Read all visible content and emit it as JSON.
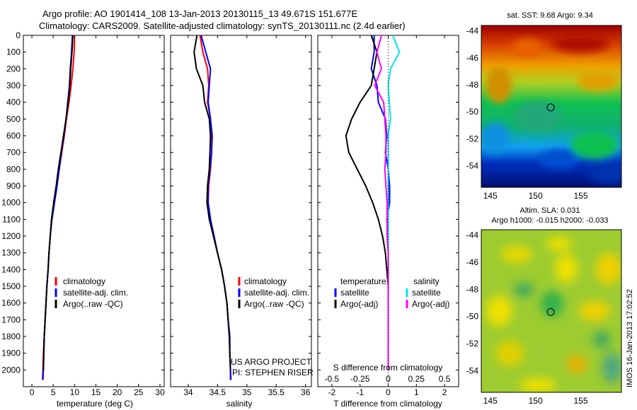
{
  "header": {
    "line1": "Argo profile: AO 1901414_108 13-Jan-2013 20130115_13 49.671S 151.677E",
    "line2": "Climatology: CARS2009. Satellite-adjusted climatology: synTS_20130111.nc (2.4d earlier)"
  },
  "colors": {
    "climatology": "#ff0000",
    "satellite": "#0000ff",
    "argo": "#000000",
    "sal_satellite": "#00e5e5",
    "sal_argo": "#ff00ff"
  },
  "depth_axis": {
    "ylim": [
      2100,
      0
    ],
    "ticks": [
      0,
      100,
      200,
      300,
      400,
      500,
      600,
      700,
      800,
      900,
      1000,
      1100,
      1200,
      1300,
      1400,
      1500,
      1600,
      1700,
      1800,
      1900,
      2000
    ]
  },
  "chart_data": [
    {
      "type": "line",
      "xlabel": "temperature (deg C)",
      "ylabel": "",
      "xlim": [
        -2,
        31
      ],
      "xticks": [
        0,
        5,
        10,
        15,
        20,
        25,
        30
      ],
      "legend": [
        "climatology",
        "satellite-adj. clim.",
        "Argo(..raw -QC)"
      ],
      "legend_position": "lower-center",
      "series": [
        {
          "name": "climatology",
          "color": "#ff0000",
          "x": [
            10.0,
            9.9,
            9.6,
            9.2,
            8.7,
            8.1,
            7.6,
            7.0,
            6.4,
            5.8,
            5.2,
            4.6,
            4.3,
            4.0,
            3.8,
            3.5,
            3.3,
            3.1,
            2.9,
            2.7,
            2.6,
            2.5
          ],
          "y": [
            0,
            100,
            200,
            300,
            400,
            500,
            600,
            700,
            800,
            900,
            1000,
            1100,
            1200,
            1300,
            1400,
            1500,
            1600,
            1700,
            1800,
            1900,
            2000,
            2060
          ]
        },
        {
          "name": "satellite-adj. clim.",
          "color": "#0000ff",
          "x": [
            9.5,
            9.3,
            9.0,
            8.8,
            8.4,
            8.0,
            7.5,
            6.9,
            6.4,
            5.9,
            5.3,
            4.7,
            4.3,
            4.0,
            3.8,
            3.5,
            3.3,
            3.1,
            2.9,
            2.8,
            2.7,
            2.6
          ],
          "y": [
            0,
            100,
            200,
            300,
            400,
            500,
            600,
            700,
            800,
            900,
            1000,
            1100,
            1200,
            1300,
            1400,
            1500,
            1600,
            1700,
            1800,
            1900,
            2000,
            2060
          ]
        },
        {
          "name": "Argo(..raw -QC)",
          "color": "#000000",
          "x": [
            9.6,
            9.4,
            9.1,
            8.9,
            8.5,
            8.0,
            7.4,
            6.8,
            6.2,
            5.7,
            5.1,
            4.6,
            4.3,
            4.0,
            3.8,
            3.5,
            3.3,
            3.1,
            2.9,
            2.8,
            2.7
          ],
          "y": [
            0,
            100,
            200,
            300,
            400,
            500,
            600,
            700,
            800,
            900,
            1000,
            1100,
            1200,
            1300,
            1400,
            1500,
            1600,
            1700,
            1800,
            1900,
            2000
          ]
        }
      ]
    },
    {
      "type": "line",
      "xlabel": "salinity",
      "ylabel": "",
      "xlim": [
        33.7,
        36.1
      ],
      "xticks": [
        34,
        34.5,
        35,
        35.5,
        36
      ],
      "legend": [
        "climatology",
        "satellite-adj. clim.",
        "Argo(..raw -QC)"
      ],
      "legend_position": "lower-center",
      "annotation": [
        "US ARGO PROJECT",
        "PI: STEPHEN RISER"
      ],
      "series": [
        {
          "name": "climatology",
          "color": "#ff0000",
          "x": [
            34.2,
            34.25,
            34.33,
            34.35,
            34.33,
            34.38,
            34.4,
            34.4,
            34.38,
            34.35,
            34.34,
            34.38,
            34.44,
            34.5,
            34.57,
            34.62,
            34.66,
            34.68,
            34.7,
            34.71,
            34.72,
            34.73
          ],
          "y": [
            0,
            100,
            200,
            300,
            400,
            500,
            600,
            700,
            800,
            900,
            1000,
            1100,
            1200,
            1300,
            1400,
            1500,
            1600,
            1700,
            1800,
            1900,
            2000,
            2060
          ]
        },
        {
          "name": "satellite-adj. clim.",
          "color": "#0000ff",
          "x": [
            34.22,
            34.3,
            34.38,
            34.36,
            34.34,
            34.38,
            34.41,
            34.4,
            34.37,
            34.34,
            34.34,
            34.38,
            34.44,
            34.5,
            34.57,
            34.62,
            34.66,
            34.68,
            34.7,
            34.71,
            34.72,
            34.72
          ],
          "y": [
            0,
            100,
            200,
            300,
            400,
            500,
            600,
            700,
            800,
            900,
            1000,
            1100,
            1200,
            1300,
            1400,
            1500,
            1600,
            1700,
            1800,
            1900,
            2000,
            2060
          ]
        },
        {
          "name": "Argo(..raw -QC)",
          "color": "#000000",
          "x": [
            34.15,
            34.1,
            34.14,
            34.25,
            34.28,
            34.36,
            34.38,
            34.37,
            34.36,
            34.33,
            34.32,
            34.36,
            34.43,
            34.5,
            34.57,
            34.62,
            34.66,
            34.68,
            34.71,
            34.71,
            34.72
          ],
          "y": [
            0,
            100,
            200,
            300,
            400,
            500,
            600,
            700,
            800,
            900,
            1000,
            1100,
            1200,
            1300,
            1400,
            1500,
            1600,
            1700,
            1800,
            1900,
            2000
          ]
        }
      ]
    },
    {
      "type": "line",
      "xlabel": "T difference from climatology",
      "xlabel_top": "S difference from climatology",
      "xlim": [
        -2.5,
        2.5
      ],
      "xticks": [
        -2,
        -1,
        0,
        1,
        2
      ],
      "xticks_top": [
        -0.5,
        -0.25,
        0,
        0.25,
        0.5
      ],
      "legend_groups": [
        {
          "title": "temperature",
          "entries": [
            "satellite",
            "Argo(-adj)"
          ]
        },
        {
          "title": "salinity",
          "entries": [
            "satellite",
            "Argo(-adj)"
          ]
        }
      ],
      "series": [
        {
          "name": "temperature satellite",
          "color": "#0000ff",
          "x": [
            -0.5,
            -0.5,
            -0.6,
            -0.4,
            -0.35,
            -0.1,
            -0.05,
            -0.1,
            0.0,
            0.05,
            0.05,
            -0.05,
            0.0,
            0.0,
            0.0,
            0.0,
            0.0,
            0.0,
            0.0,
            0.0,
            0.0
          ],
          "y": [
            0,
            100,
            200,
            300,
            400,
            500,
            600,
            700,
            800,
            900,
            1000,
            1100,
            1200,
            1300,
            1400,
            1500,
            1600,
            1700,
            1800,
            1900,
            2000
          ]
        },
        {
          "name": "temperature Argo(-adj)",
          "color": "#000000",
          "x": [
            -0.6,
            -0.4,
            -0.5,
            -0.6,
            -1.0,
            -1.3,
            -1.5,
            -1.4,
            -1.1,
            -0.8,
            -0.55,
            -0.35,
            -0.2,
            -0.1,
            -0.05,
            0.0,
            0.0,
            0.0,
            0.0,
            0.0,
            0.0
          ],
          "y": [
            0,
            100,
            200,
            300,
            400,
            500,
            600,
            700,
            800,
            900,
            1000,
            1100,
            1200,
            1300,
            1400,
            1500,
            1600,
            1700,
            1800,
            1900,
            2000
          ]
        },
        {
          "name": "salinity satellite",
          "color": "#00e5e5",
          "x": [
            0.04,
            0.1,
            0.02,
            0.0,
            0.01,
            0.02,
            0.0,
            0.0,
            0.0,
            0.0,
            0.0,
            0.0,
            0.0,
            0.0,
            0.0,
            0.0,
            0.0,
            0.0,
            0.0,
            0.0,
            0.0
          ],
          "y": [
            0,
            100,
            200,
            300,
            400,
            500,
            600,
            700,
            800,
            900,
            1000,
            1100,
            1200,
            1300,
            1400,
            1500,
            1600,
            1700,
            1800,
            1900,
            2000
          ]
        },
        {
          "name": "salinity Argo(-adj)",
          "color": "#ff00ff",
          "x": [
            -0.06,
            -0.1,
            -0.06,
            -0.12,
            -0.04,
            -0.03,
            -0.02,
            -0.02,
            -0.03,
            -0.02,
            -0.01,
            -0.01,
            -0.01,
            0.0,
            0.0,
            0.0,
            0.0,
            0.0,
            0.0,
            0.0,
            0.0
          ],
          "y": [
            0,
            100,
            200,
            300,
            400,
            500,
            600,
            700,
            800,
            900,
            1000,
            1100,
            1200,
            1300,
            1400,
            1500,
            1600,
            1700,
            1800,
            1900,
            2000
          ]
        }
      ]
    },
    {
      "type": "heatmap",
      "title": "sat. SST: 9.68 Argo: 9.34",
      "xlim": [
        144,
        159.5
      ],
      "ylim": [
        -55.6,
        -43.6
      ],
      "xticks": [
        145,
        150,
        155
      ],
      "yticks": [
        -44,
        -46,
        -48,
        -50,
        -52,
        -54
      ],
      "marker": {
        "lon": 151.677,
        "lat": -49.671
      }
    },
    {
      "type": "heatmap",
      "title": "Altim. SLA: 0.031",
      "subtitle": "Argo h1000: -0.015 h2000: -0.033",
      "xlim": [
        144,
        159.5
      ],
      "ylim": [
        -55.6,
        -43.6
      ],
      "xticks": [
        145,
        150,
        155
      ],
      "yticks": [
        -44,
        -46,
        -48,
        -50,
        -52,
        -54
      ],
      "marker": {
        "lon": 151.677,
        "lat": -49.671
      }
    }
  ],
  "stamp": "IMOS 16-Jan-2013 17:02:52"
}
